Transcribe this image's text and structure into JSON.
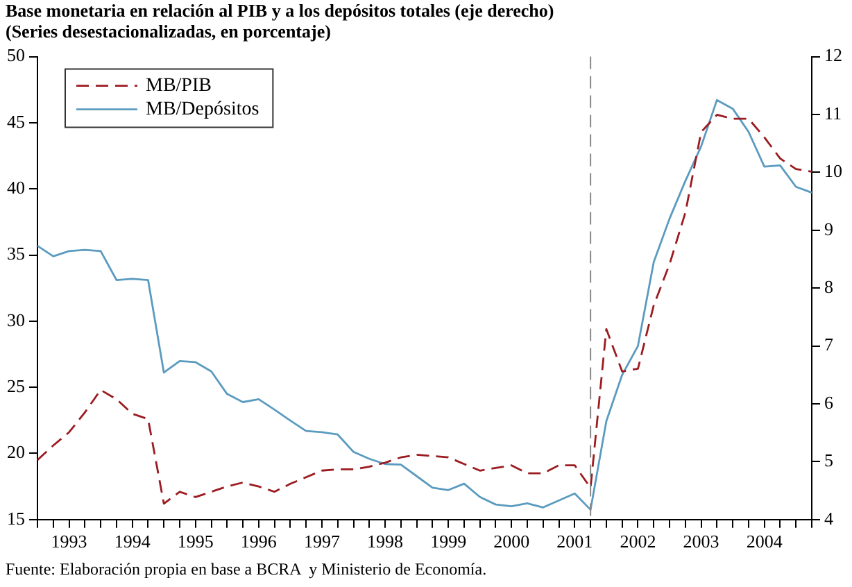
{
  "chart_data": {
    "type": "line",
    "title": "Base monetaria en relación al PIB y a los depósitos totales (eje derecho)",
    "subtitle": "(Series desestacionalizadas, en porcentaje)",
    "annotations": [
      "Fuente: Elaboración propia en base a BCRA  y Ministerio de Economía."
    ],
    "x": [
      1993,
      1993.25,
      1993.5,
      1993.75,
      1994,
      1994.25,
      1994.5,
      1994.75,
      1995,
      1995.25,
      1995.5,
      1995.75,
      1996,
      1996.25,
      1996.5,
      1996.75,
      1997,
      1997.25,
      1997.5,
      1997.75,
      1998,
      1998.25,
      1998.5,
      1998.75,
      1999,
      1999.25,
      1999.5,
      1999.75,
      2000,
      2000.25,
      2000.5,
      2000.75,
      2001,
      2001.25,
      2001.5,
      2001.75,
      2002,
      2002.25,
      2002.5,
      2002.75,
      2003,
      2003.25,
      2003.5,
      2003.75,
      2004,
      2004.25,
      2004.5,
      2004.75,
      2005,
      2005.25
    ],
    "series": [
      {
        "name": "MB/PIB",
        "color": "#9b1c20",
        "line_style": "dashed",
        "values": [
          19.5,
          20.6,
          21.6,
          23.1,
          24.8,
          24.1,
          23.0,
          22.6,
          16.2,
          17.1,
          16.7,
          17.1,
          17.5,
          17.8,
          17.5,
          17.1,
          17.7,
          18.2,
          18.7,
          18.8,
          18.8,
          19.0,
          19.3,
          19.7,
          19.9,
          19.8,
          19.7,
          19.2,
          18.7,
          18.9,
          19.1,
          18.5,
          18.5,
          19.1,
          19.1,
          17.4,
          29.4,
          26.2,
          26.4,
          31.2,
          34.3,
          38.2,
          44.3,
          45.6,
          45.3,
          45.3,
          43.9,
          42.3,
          41.5,
          41.3
        ]
      },
      {
        "name": "MB/Depósitos",
        "color": "#5b9bbf",
        "line_style": "solid",
        "axis": "y2",
        "values": [
          8.73,
          8.55,
          8.64,
          8.66,
          8.64,
          8.14,
          8.16,
          8.14,
          6.54,
          6.74,
          6.72,
          6.56,
          6.17,
          6.03,
          6.08,
          5.9,
          5.71,
          5.53,
          5.51,
          5.47,
          5.17,
          5.05,
          4.96,
          4.95,
          4.75,
          4.55,
          4.51,
          4.62,
          4.39,
          4.26,
          4.23,
          4.28,
          4.21,
          4.33,
          4.45,
          4.17,
          5.7,
          6.5,
          7.0,
          8.45,
          9.2,
          9.85,
          10.45,
          11.25,
          11.1,
          10.7,
          10.1,
          10.12,
          9.75,
          9.65
        ]
      }
    ],
    "xlim": [
      1993,
      2005.25
    ],
    "xticks": [
      {
        "value": 1993,
        "label": null
      },
      {
        "value": 1993.25,
        "label": null
      },
      {
        "value": 1993.5,
        "label": "1993"
      },
      {
        "value": 1993.75,
        "label": null
      },
      {
        "value": 1994,
        "label": null
      },
      {
        "value": 1994.25,
        "label": null
      },
      {
        "value": 1994.5,
        "label": "1994"
      },
      {
        "value": 1994.75,
        "label": null
      },
      {
        "value": 1995,
        "label": null
      },
      {
        "value": 1995.25,
        "label": null
      },
      {
        "value": 1995.5,
        "label": "1995"
      },
      {
        "value": 1995.75,
        "label": null
      },
      {
        "value": 1996,
        "label": null
      },
      {
        "value": 1996.25,
        "label": null
      },
      {
        "value": 1996.5,
        "label": "1996"
      },
      {
        "value": 1996.75,
        "label": null
      },
      {
        "value": 1997,
        "label": null
      },
      {
        "value": 1997.25,
        "label": null
      },
      {
        "value": 1997.5,
        "label": "1997"
      },
      {
        "value": 1997.75,
        "label": null
      },
      {
        "value": 1998,
        "label": null
      },
      {
        "value": 1998.25,
        "label": null
      },
      {
        "value": 1998.5,
        "label": "1998"
      },
      {
        "value": 1998.75,
        "label": null
      },
      {
        "value": 1999,
        "label": null
      },
      {
        "value": 1999.25,
        "label": null
      },
      {
        "value": 1999.5,
        "label": "1999"
      },
      {
        "value": 1999.75,
        "label": null
      },
      {
        "value": 2000,
        "label": null
      },
      {
        "value": 2000.25,
        "label": null
      },
      {
        "value": 2000.5,
        "label": "2000"
      },
      {
        "value": 2000.75,
        "label": null
      },
      {
        "value": 2001,
        "label": null
      },
      {
        "value": 2001.25,
        "label": null
      },
      {
        "value": 2001.5,
        "label": "2001"
      },
      {
        "value": 2001.75,
        "label": null
      },
      {
        "value": 2002,
        "label": null
      },
      {
        "value": 2002.25,
        "label": null
      },
      {
        "value": 2002.5,
        "label": "2002"
      },
      {
        "value": 2002.75,
        "label": null
      },
      {
        "value": 2003,
        "label": null
      },
      {
        "value": 2003.25,
        "label": null
      },
      {
        "value": 2003.5,
        "label": "2003"
      },
      {
        "value": 2003.75,
        "label": null
      },
      {
        "value": 2004,
        "label": null
      },
      {
        "value": 2004.25,
        "label": null
      },
      {
        "value": 2004.5,
        "label": "2004"
      },
      {
        "value": 2004.75,
        "label": null
      },
      {
        "value": 2005,
        "label": null
      },
      {
        "value": 2005.25,
        "label": null
      }
    ],
    "ylim": [
      15,
      50
    ],
    "yticks": [
      15,
      20,
      25,
      30,
      35,
      40,
      45,
      50
    ],
    "y2lim": [
      4,
      12
    ],
    "y2ticks": [
      4,
      5,
      6,
      7,
      8,
      9,
      10,
      11,
      12
    ],
    "ref_lines": [
      {
        "axis": "x",
        "value": 2001.75,
        "color": "#888888",
        "line_style": "dashed"
      }
    ],
    "grid": false,
    "legend": "top left",
    "marker": "none"
  }
}
